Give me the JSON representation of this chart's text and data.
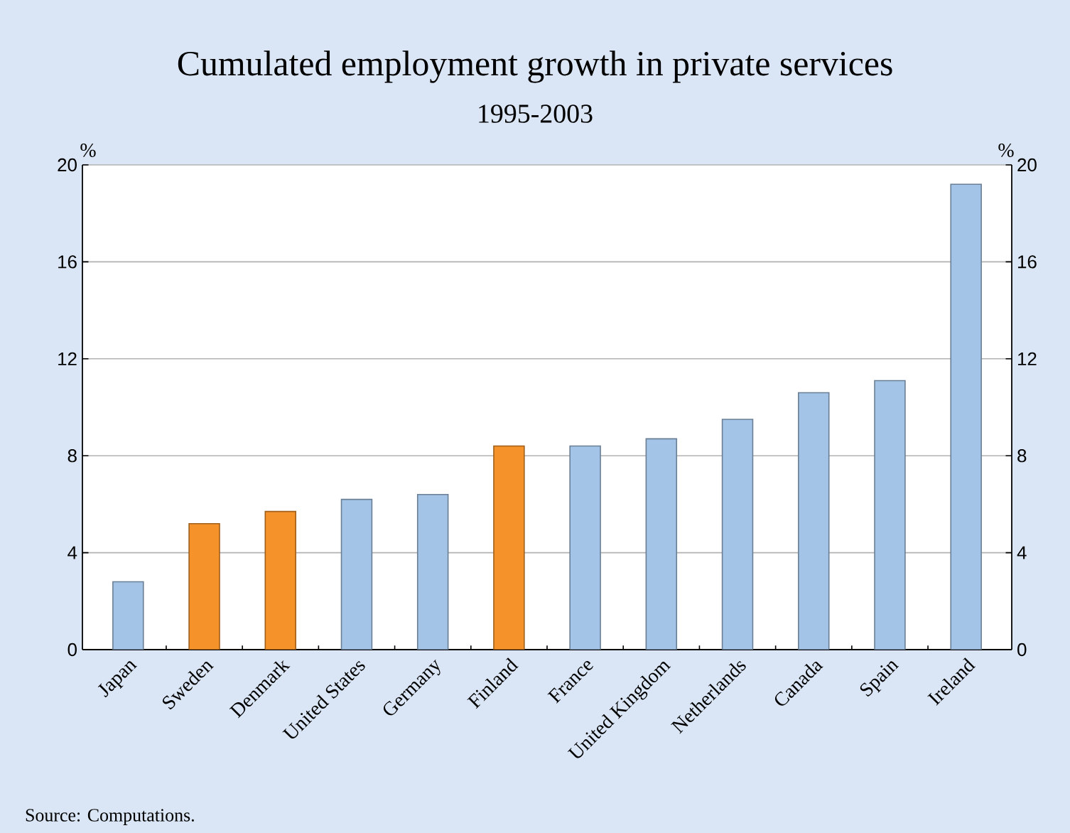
{
  "chart_data": {
    "type": "bar",
    "title": "Cumulated employment growth in private services",
    "subtitle": "1995-2003",
    "categories": [
      "Japan",
      "Sweden",
      "Denmark",
      "United States",
      "Germany",
      "Finland",
      "France",
      "United Kingdom",
      "Netherlands",
      "Canada",
      "Spain",
      "Ireland"
    ],
    "values": [
      2.8,
      5.2,
      5.7,
      6.2,
      6.4,
      8.4,
      8.4,
      8.7,
      9.5,
      10.6,
      11.1,
      19.2
    ],
    "colors": [
      "#a3c4e6",
      "#f5922a",
      "#f5922a",
      "#a3c4e6",
      "#a3c4e6",
      "#f5922a",
      "#a3c4e6",
      "#a3c4e6",
      "#a3c4e6",
      "#a3c4e6",
      "#a3c4e6",
      "#a3c4e6"
    ],
    "ylabel": "%",
    "y2label": "%",
    "ylim": [
      0,
      20
    ],
    "yticks": [
      0,
      4,
      8,
      12,
      16,
      20
    ],
    "y2lim": [
      0,
      20
    ],
    "y2ticks": [
      0,
      4,
      8,
      12,
      16,
      20
    ],
    "grid": "y",
    "annotations": [
      "Source: Computations."
    ]
  }
}
